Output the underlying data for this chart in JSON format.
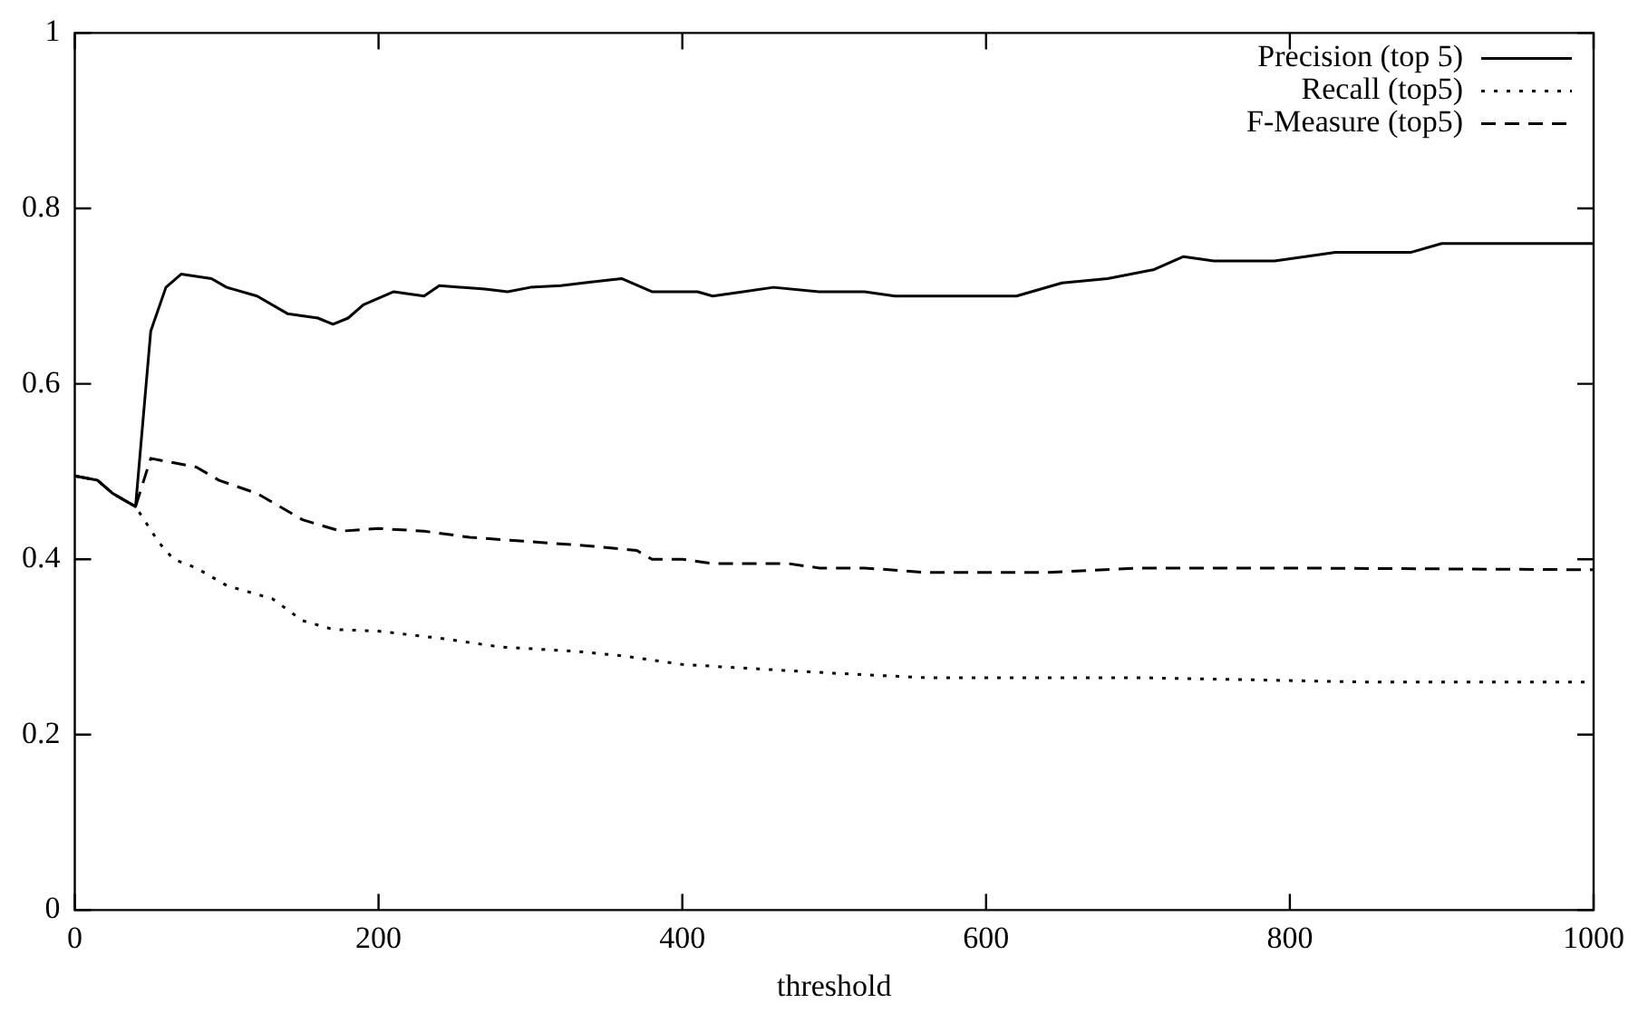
{
  "chart_data": {
    "type": "line",
    "xlabel": "threshold",
    "xlim": [
      0,
      1000
    ],
    "xticks": [
      0,
      200,
      400,
      600,
      800,
      1000
    ],
    "ylim": [
      0,
      1
    ],
    "yticks": [
      0,
      0.2,
      0.4,
      0.6,
      0.8,
      1
    ],
    "grid": false,
    "legend": "top right",
    "marker": "none",
    "x": [
      0,
      15,
      25,
      40,
      50,
      60,
      70,
      90,
      100,
      120,
      140,
      160,
      170,
      180,
      190,
      210,
      230,
      240,
      270,
      285,
      300,
      320,
      340,
      360,
      380,
      410,
      420,
      440,
      460,
      490,
      520,
      540,
      620,
      650,
      680,
      710,
      730,
      750,
      790,
      830,
      880,
      900,
      1000
    ],
    "series": [
      {
        "name": "Precision (top 5)",
        "color": "#000000",
        "line_style": "solid",
        "values": [
          0.495,
          0.49,
          0.475,
          0.46,
          0.66,
          0.71,
          0.725,
          0.72,
          0.71,
          0.7,
          0.68,
          0.675,
          0.668,
          0.675,
          0.69,
          0.705,
          0.7,
          0.712,
          0.708,
          0.705,
          0.71,
          0.712,
          0.716,
          0.72,
          0.705,
          0.705,
          0.7,
          0.705,
          0.71,
          0.705,
          0.705,
          0.7,
          0.7,
          0.715,
          0.72,
          0.73,
          0.745,
          0.74,
          0.74,
          0.75,
          0.75,
          0.76,
          0.76
        ]
      },
      {
        "name": "Recall (top5)",
        "color": "#000000",
        "line_style": "dotted",
        "x": [
          0,
          15,
          25,
          40,
          55,
          65,
          80,
          100,
          130,
          150,
          170,
          200,
          240,
          280,
          330,
          360,
          400,
          450,
          500,
          560,
          700,
          850,
          1000
        ],
        "values": [
          0.495,
          0.49,
          0.475,
          0.46,
          0.42,
          0.4,
          0.39,
          0.37,
          0.355,
          0.33,
          0.32,
          0.318,
          0.31,
          0.3,
          0.295,
          0.29,
          0.28,
          0.275,
          0.27,
          0.265,
          0.265,
          0.26,
          0.26
        ]
      },
      {
        "name": "F-Measure (top5)",
        "color": "#000000",
        "line_style": "dashed",
        "x": [
          0,
          15,
          25,
          40,
          50,
          80,
          95,
          120,
          130,
          150,
          175,
          200,
          230,
          260,
          300,
          340,
          370,
          380,
          400,
          420,
          470,
          490,
          520,
          560,
          640,
          700,
          800,
          1000
        ],
        "values": [
          0.495,
          0.49,
          0.475,
          0.46,
          0.515,
          0.505,
          0.49,
          0.475,
          0.465,
          0.445,
          0.432,
          0.435,
          0.432,
          0.425,
          0.42,
          0.415,
          0.41,
          0.4,
          0.4,
          0.395,
          0.395,
          0.39,
          0.39,
          0.385,
          0.385,
          0.39,
          0.39,
          0.388
        ]
      }
    ]
  }
}
